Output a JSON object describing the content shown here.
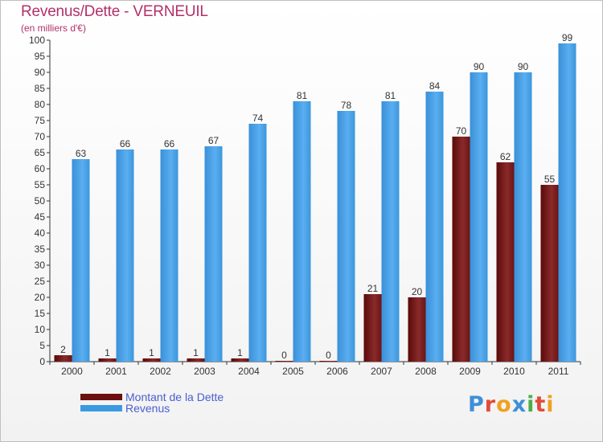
{
  "header": {
    "title": "Revenus/Dette - VERNEUIL",
    "subtitle": "(en milliers d'€)"
  },
  "logo": {
    "text": "Proxiti",
    "letters": [
      {
        "ch": "P",
        "color": "#3f8fd6"
      },
      {
        "ch": "r",
        "color": "#e04b3a"
      },
      {
        "ch": "o",
        "color": "#f0a020"
      },
      {
        "ch": "x",
        "color": "#3f8fd6"
      },
      {
        "ch": "i",
        "color": "#4cae4c"
      },
      {
        "ch": "t",
        "color": "#e04b3a"
      },
      {
        "ch": "i",
        "color": "#f0a020"
      }
    ]
  },
  "chart_data": {
    "type": "bar",
    "title": "Revenus/Dette - VERNEUIL",
    "subtitle": "(en milliers d'€)",
    "categories": [
      "2000",
      "2001",
      "2002",
      "2003",
      "2004",
      "2005",
      "2006",
      "2007",
      "2008",
      "2009",
      "2010",
      "2011"
    ],
    "series": [
      {
        "name": "Montant de la Dette",
        "color": "#6b0f0f",
        "values": [
          2,
          1,
          1,
          1,
          1,
          0,
          0,
          21,
          20,
          70,
          62,
          55
        ]
      },
      {
        "name": "Revenus",
        "color": "#3b9ae0",
        "values": [
          63,
          66,
          66,
          67,
          74,
          81,
          78,
          81,
          84,
          90,
          90,
          99
        ]
      }
    ],
    "ylim": [
      0,
      100
    ],
    "yticks": [
      0,
      5,
      10,
      15,
      20,
      25,
      30,
      35,
      40,
      45,
      50,
      55,
      60,
      65,
      70,
      75,
      80,
      85,
      90,
      95,
      100
    ],
    "grid": false,
    "legend_position": "bottom-left"
  }
}
